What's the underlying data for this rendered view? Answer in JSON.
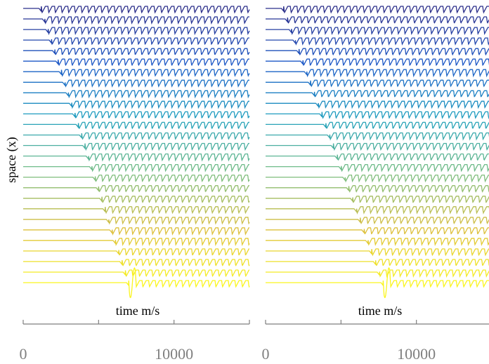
{
  "chart_data": [
    {
      "type": "line",
      "panel": "left",
      "ylabel": "space (x)",
      "xlabel": "time m/s",
      "xlim": [
        0,
        15000
      ],
      "x_ticks": [
        0,
        5000,
        10000,
        15000
      ],
      "x_tick_labels": [
        "0",
        "",
        "10000",
        ""
      ],
      "trace_count": 27,
      "layout": "waterfall (stacked traces, one per spatial position, bottom = x index 1)",
      "colormap": "viridis (yellow at bottom → dark blue at top)",
      "wave_onset_time_start": 1200,
      "wave_onset_time_end": 7000,
      "oscillation_period": 440,
      "grid": false,
      "legend": "none"
    },
    {
      "type": "line",
      "panel": "right",
      "xlabel": "time m/s",
      "xlim": [
        0,
        15000
      ],
      "x_ticks": [
        0,
        5000,
        10000,
        15000
      ],
      "x_tick_labels": [
        "0",
        "",
        "10000",
        ""
      ],
      "trace_count": 27,
      "layout": "waterfall (stacked traces, one per spatial position, bottom = x index 1)",
      "colormap": "viridis (yellow at bottom → dark blue at top)",
      "wave_onset_time_start": 1200,
      "wave_onset_time_end": 7800,
      "oscillation_period": 440,
      "grid": false,
      "legend": "none"
    }
  ],
  "colors": {
    "trace_bottom": "#f7f01f",
    "trace_mid": "#3ab8a0",
    "trace_top": "#2b2f8a",
    "axis": "#7f7f7f",
    "text": "#000000"
  }
}
